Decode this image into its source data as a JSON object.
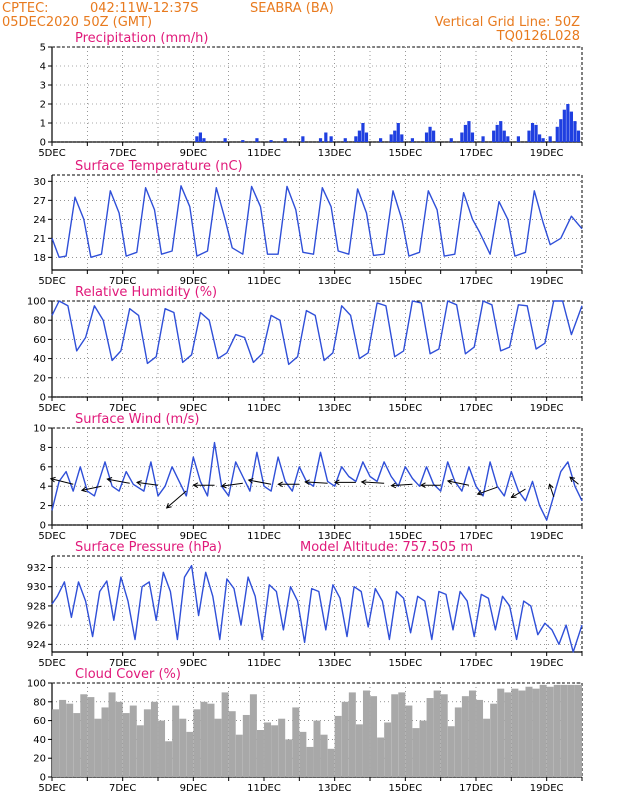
{
  "header": {
    "source": "CPTEC:",
    "location": "042:11W-12:37S",
    "station": "SEABRA (BA)",
    "run": "05DEC2020 50Z (GMT)",
    "grid_line": "Vertical Grid Line: 50Z",
    "model": "TQ0126L028"
  },
  "chart_data": [
    {
      "id": "precip",
      "type": "bar",
      "title": "Precipitation (mm/h)",
      "ylim": [
        0,
        5
      ],
      "yticks": [
        0,
        1,
        2,
        3,
        4,
        5
      ],
      "xlim_days": [
        5,
        20
      ],
      "x_tick_labels": [
        "5DEC",
        "7DEC",
        "9DEC",
        "11DEC",
        "13DEC",
        "15DEC",
        "17DEC",
        "19DEC"
      ],
      "x": [
        9.1,
        9.2,
        9.3,
        9.9,
        10.4,
        10.8,
        11.2,
        11.6,
        12.1,
        12.6,
        12.75,
        12.9,
        13.3,
        13.6,
        13.7,
        13.8,
        13.9,
        14.3,
        14.6,
        14.7,
        14.8,
        14.9,
        15.2,
        15.6,
        15.7,
        15.8,
        16.3,
        16.6,
        16.7,
        16.8,
        16.9,
        17.2,
        17.5,
        17.6,
        17.7,
        17.8,
        17.9,
        18.2,
        18.5,
        18.6,
        18.7,
        18.8,
        18.9,
        19.1,
        19.3,
        19.4,
        19.5,
        19.6,
        19.7,
        19.8,
        19.9
      ],
      "values": [
        0.3,
        0.5,
        0.2,
        0.2,
        0.1,
        0.2,
        0.1,
        0.2,
        0.3,
        0.2,
        0.5,
        0.3,
        0.2,
        0.3,
        0.6,
        1.0,
        0.5,
        0.2,
        0.4,
        0.6,
        1.0,
        0.4,
        0.2,
        0.5,
        0.8,
        0.6,
        0.2,
        0.5,
        0.9,
        1.1,
        0.5,
        0.3,
        0.6,
        0.9,
        1.1,
        0.6,
        0.3,
        0.3,
        0.6,
        1.0,
        0.9,
        0.4,
        0.2,
        0.3,
        0.8,
        1.2,
        1.7,
        2.0,
        1.6,
        1.1,
        0.6
      ]
    },
    {
      "id": "temp",
      "type": "line",
      "title": "Surface Temperature (nC)",
      "ylim": [
        16,
        31
      ],
      "yticks": [
        18,
        21,
        24,
        27,
        30
      ],
      "xlim_days": [
        5,
        20
      ],
      "x_tick_labels": [
        "5DEC",
        "7DEC",
        "9DEC",
        "11DEC",
        "13DEC",
        "15DEC",
        "17DEC",
        "19DEC"
      ],
      "series": [
        {
          "x": [
            5.0,
            5.2,
            5.4,
            5.65,
            5.9,
            6.1,
            6.4,
            6.65,
            6.9,
            7.1,
            7.4,
            7.65,
            7.9,
            8.1,
            8.4,
            8.65,
            8.9,
            9.1,
            9.4,
            9.65,
            9.9,
            10.1,
            10.4,
            10.65,
            10.9,
            11.1,
            11.4,
            11.65,
            11.9,
            12.1,
            12.4,
            12.65,
            12.9,
            13.1,
            13.4,
            13.65,
            13.9,
            14.1,
            14.4,
            14.65,
            14.9,
            15.1,
            15.4,
            15.65,
            15.9,
            16.1,
            16.4,
            16.65,
            16.9,
            17.1,
            17.4,
            17.65,
            17.9,
            18.1,
            18.4,
            18.65,
            18.9,
            19.1,
            19.4,
            19.7,
            20.0
          ],
          "values": [
            21,
            18,
            18.2,
            27.5,
            24,
            18,
            18.5,
            28.5,
            25,
            18.2,
            18.8,
            29,
            25.5,
            18.5,
            19,
            29.3,
            26,
            18.2,
            19,
            29,
            24,
            19.5,
            18.5,
            29.2,
            26,
            18.5,
            18.5,
            29.2,
            25.5,
            18.8,
            18.5,
            29,
            26,
            19,
            18.5,
            28.8,
            25,
            18.3,
            18.5,
            28.5,
            24,
            18.2,
            18.8,
            28.5,
            25.5,
            18.2,
            18.5,
            28.2,
            24,
            22,
            18.5,
            26.8,
            24,
            18.2,
            18.8,
            28.5,
            23.5,
            20,
            21,
            24.5,
            22.5
          ]
        }
      ]
    },
    {
      "id": "rh",
      "type": "line",
      "title": "Relative Humidity (%)",
      "ylim": [
        0,
        100
      ],
      "yticks": [
        0,
        20,
        40,
        60,
        80,
        100
      ],
      "xlim_days": [
        5,
        20
      ],
      "x_tick_labels": [
        "5DEC",
        "7DEC",
        "9DEC",
        "11DEC",
        "13DEC",
        "15DEC",
        "17DEC",
        "19DEC"
      ],
      "series": [
        {
          "x": [
            5.0,
            5.2,
            5.45,
            5.7,
            5.95,
            6.2,
            6.45,
            6.7,
            6.95,
            7.2,
            7.45,
            7.7,
            7.95,
            8.2,
            8.45,
            8.7,
            8.95,
            9.2,
            9.45,
            9.7,
            9.95,
            10.2,
            10.45,
            10.7,
            10.95,
            11.2,
            11.45,
            11.7,
            11.95,
            12.2,
            12.45,
            12.7,
            12.95,
            13.2,
            13.45,
            13.7,
            13.95,
            14.2,
            14.45,
            14.7,
            14.95,
            15.2,
            15.45,
            15.7,
            15.95,
            16.2,
            16.45,
            16.7,
            16.95,
            17.2,
            17.45,
            17.7,
            17.95,
            18.2,
            18.45,
            18.7,
            18.95,
            19.2,
            19.45,
            19.7,
            20.0
          ],
          "values": [
            85,
            100,
            95,
            48,
            62,
            95,
            80,
            38,
            48,
            92,
            85,
            35,
            42,
            92,
            88,
            36,
            44,
            88,
            80,
            40,
            46,
            65,
            62,
            36,
            45,
            85,
            80,
            34,
            42,
            90,
            85,
            38,
            46,
            95,
            85,
            40,
            46,
            98,
            95,
            42,
            48,
            100,
            98,
            45,
            50,
            100,
            96,
            45,
            52,
            100,
            96,
            48,
            52,
            96,
            95,
            50,
            56,
            100,
            100,
            65,
            95
          ]
        }
      ]
    },
    {
      "id": "wind",
      "type": "line",
      "title": "Surface Wind (m/s)",
      "ylim": [
        0,
        10
      ],
      "yticks": [
        0,
        2,
        4,
        6,
        8,
        10
      ],
      "xlim_days": [
        5,
        20
      ],
      "x_tick_labels": [
        "5DEC",
        "7DEC",
        "9DEC",
        "11DEC",
        "13DEC",
        "15DEC",
        "17DEC",
        "19DEC"
      ],
      "series": [
        {
          "x": [
            5.0,
            5.2,
            5.4,
            5.6,
            5.8,
            6.0,
            6.2,
            6.5,
            6.7,
            6.9,
            7.1,
            7.3,
            7.6,
            7.8,
            8.0,
            8.2,
            8.4,
            8.6,
            8.8,
            9.0,
            9.2,
            9.4,
            9.6,
            9.8,
            10.0,
            10.2,
            10.4,
            10.6,
            10.8,
            11.0,
            11.2,
            11.4,
            11.6,
            11.8,
            12.0,
            12.2,
            12.4,
            12.6,
            12.8,
            13.0,
            13.2,
            13.4,
            13.6,
            13.8,
            14.0,
            14.2,
            14.4,
            14.6,
            14.8,
            15.0,
            15.2,
            15.4,
            15.6,
            15.8,
            16.0,
            16.2,
            16.4,
            16.6,
            16.8,
            17.0,
            17.2,
            17.4,
            17.6,
            17.8,
            18.0,
            18.2,
            18.4,
            18.6,
            18.8,
            19.0,
            19.2,
            19.4,
            19.6,
            19.8,
            20.0
          ],
          "values": [
            1.5,
            4.5,
            5.5,
            3.5,
            6.0,
            3.5,
            3.0,
            6.5,
            4.0,
            3.5,
            5.5,
            4.2,
            3.5,
            6.5,
            3.0,
            4.0,
            6.0,
            4.5,
            3.0,
            7.0,
            4.5,
            3.0,
            8.5,
            4.0,
            3.0,
            6.5,
            5.0,
            3.5,
            7.5,
            4.0,
            3.5,
            7.0,
            4.5,
            3.5,
            6.0,
            4.5,
            4.0,
            7.5,
            4.5,
            4.0,
            6.0,
            5.0,
            4.5,
            6.5,
            5.0,
            4.5,
            6.5,
            5.0,
            4.0,
            6.0,
            4.8,
            4.0,
            6.0,
            4.2,
            3.5,
            6.5,
            4.5,
            3.5,
            6.0,
            4.0,
            3.0,
            6.5,
            4.0,
            3.0,
            5.5,
            3.5,
            2.5,
            4.5,
            2.0,
            0.5,
            3.0,
            5.5,
            6.5,
            4.0,
            2.5
          ]
        }
      ],
      "vectors": [
        {
          "x": 5.6,
          "y": 4.2,
          "u": -1.6,
          "v": 0.4
        },
        {
          "x": 6.4,
          "y": 4.0,
          "u": -1.4,
          "v": -0.3
        },
        {
          "x": 7.2,
          "y": 4.3,
          "u": -1.6,
          "v": 0.3
        },
        {
          "x": 8.0,
          "y": 4.1,
          "u": -1.5,
          "v": 0.2
        },
        {
          "x": 8.8,
          "y": 3.5,
          "u": -1.4,
          "v": -1.2
        },
        {
          "x": 9.6,
          "y": 4.1,
          "u": -1.5,
          "v": 0.0
        },
        {
          "x": 10.4,
          "y": 4.3,
          "u": -1.5,
          "v": -0.2
        },
        {
          "x": 11.2,
          "y": 4.2,
          "u": -1.6,
          "v": 0.3
        },
        {
          "x": 12.0,
          "y": 4.2,
          "u": -1.5,
          "v": 0.0
        },
        {
          "x": 12.8,
          "y": 4.3,
          "u": -1.6,
          "v": 0.1
        },
        {
          "x": 13.6,
          "y": 4.4,
          "u": -1.5,
          "v": 0.0
        },
        {
          "x": 14.4,
          "y": 4.3,
          "u": -1.6,
          "v": 0.1
        },
        {
          "x": 15.2,
          "y": 4.2,
          "u": -1.5,
          "v": -0.1
        },
        {
          "x": 16.0,
          "y": 4.1,
          "u": -1.4,
          "v": 0.0
        },
        {
          "x": 16.8,
          "y": 4.1,
          "u": -1.5,
          "v": 0.3
        },
        {
          "x": 17.6,
          "y": 3.9,
          "u": -1.4,
          "v": -0.5
        },
        {
          "x": 18.4,
          "y": 3.7,
          "u": -1.0,
          "v": -0.6
        },
        {
          "x": 19.2,
          "y": 2.9,
          "u": -0.3,
          "v": 0.9
        },
        {
          "x": 19.9,
          "y": 4.2,
          "u": -0.6,
          "v": 0.5
        }
      ]
    },
    {
      "id": "pres",
      "type": "line",
      "title": "Surface Pressure (hPa)",
      "annotation": "Model Altitude: 757.505  m",
      "ylim": [
        923.2,
        933.2
      ],
      "yticks": [
        924,
        926,
        928,
        930,
        932
      ],
      "xlim_days": [
        5,
        20
      ],
      "x_tick_labels": [
        "5DEC",
        "7DEC",
        "9DEC",
        "11DEC",
        "13DEC",
        "15DEC",
        "17DEC",
        "19DEC"
      ],
      "series": [
        {
          "x": [
            5.0,
            5.15,
            5.35,
            5.55,
            5.75,
            5.95,
            6.15,
            6.35,
            6.55,
            6.75,
            6.95,
            7.15,
            7.35,
            7.55,
            7.75,
            7.95,
            8.15,
            8.35,
            8.55,
            8.75,
            8.95,
            9.15,
            9.35,
            9.55,
            9.75,
            9.95,
            10.15,
            10.35,
            10.55,
            10.75,
            10.95,
            11.15,
            11.35,
            11.55,
            11.75,
            11.95,
            12.15,
            12.35,
            12.55,
            12.75,
            12.95,
            13.15,
            13.35,
            13.55,
            13.75,
            13.95,
            14.15,
            14.35,
            14.55,
            14.75,
            14.95,
            15.15,
            15.35,
            15.55,
            15.75,
            15.95,
            16.15,
            16.35,
            16.55,
            16.75,
            16.95,
            17.15,
            17.35,
            17.55,
            17.75,
            17.95,
            18.15,
            18.35,
            18.55,
            18.75,
            18.95,
            19.15,
            19.35,
            19.55,
            19.75,
            20.0
          ],
          "values": [
            928.2,
            929,
            930.5,
            926.8,
            930.5,
            928.5,
            924.8,
            929.5,
            930.6,
            926.5,
            931,
            928.5,
            924.5,
            930,
            930.5,
            926.5,
            931.5,
            929.5,
            924.5,
            931,
            932.2,
            927,
            931.5,
            929,
            924.5,
            930.8,
            929.8,
            926,
            931,
            929,
            924.5,
            930.2,
            929.5,
            925.5,
            930,
            928.5,
            924.2,
            929.8,
            929.5,
            925.5,
            930.2,
            928.8,
            924.8,
            930,
            929.5,
            925.8,
            929.8,
            928.5,
            924.5,
            929.5,
            928.8,
            925.2,
            929,
            928.5,
            924.5,
            929.5,
            929.2,
            925.5,
            929.5,
            928.5,
            924.8,
            929.2,
            928.8,
            925.5,
            929,
            928,
            924.5,
            928.5,
            928,
            925,
            926.2,
            925.5,
            924,
            926,
            923.2,
            926
          ]
        }
      ]
    },
    {
      "id": "cloud",
      "type": "bar",
      "title": "Cloud Cover (%)",
      "ylim": [
        0,
        100
      ],
      "yticks": [
        0,
        20,
        40,
        60,
        80,
        100
      ],
      "xlim_days": [
        5,
        20
      ],
      "x_tick_labels": [
        "5DEC",
        "7DEC",
        "9DEC",
        "11DEC",
        "13DEC",
        "15DEC",
        "17DEC",
        "19DEC"
      ],
      "x": [
        5.1,
        5.3,
        5.5,
        5.7,
        5.9,
        6.1,
        6.3,
        6.5,
        6.7,
        6.9,
        7.1,
        7.3,
        7.5,
        7.7,
        7.9,
        8.1,
        8.3,
        8.5,
        8.7,
        8.9,
        9.1,
        9.3,
        9.5,
        9.7,
        9.9,
        10.1,
        10.3,
        10.5,
        10.7,
        10.9,
        11.1,
        11.3,
        11.5,
        11.7,
        11.9,
        12.1,
        12.3,
        12.5,
        12.7,
        12.9,
        13.1,
        13.3,
        13.5,
        13.7,
        13.9,
        14.1,
        14.3,
        14.5,
        14.7,
        14.9,
        15.1,
        15.3,
        15.5,
        15.7,
        15.9,
        16.1,
        16.3,
        16.5,
        16.7,
        16.9,
        17.1,
        17.3,
        17.5,
        17.7,
        17.9,
        18.1,
        18.3,
        18.5,
        18.7,
        18.9,
        19.1,
        19.3,
        19.5,
        19.7,
        19.9
      ],
      "values": [
        72,
        82,
        78,
        68,
        88,
        85,
        62,
        74,
        90,
        80,
        68,
        76,
        55,
        72,
        80,
        60,
        38,
        76,
        62,
        48,
        72,
        80,
        78,
        62,
        90,
        70,
        45,
        66,
        88,
        50,
        58,
        55,
        62,
        40,
        74,
        48,
        32,
        60,
        45,
        30,
        65,
        80,
        90,
        56,
        92,
        86,
        42,
        58,
        88,
        90,
        76,
        52,
        60,
        84,
        92,
        88,
        54,
        74,
        86,
        92,
        82,
        62,
        78,
        94,
        90,
        94,
        92,
        96,
        94,
        98,
        96,
        98,
        98,
        98,
        98
      ]
    }
  ]
}
